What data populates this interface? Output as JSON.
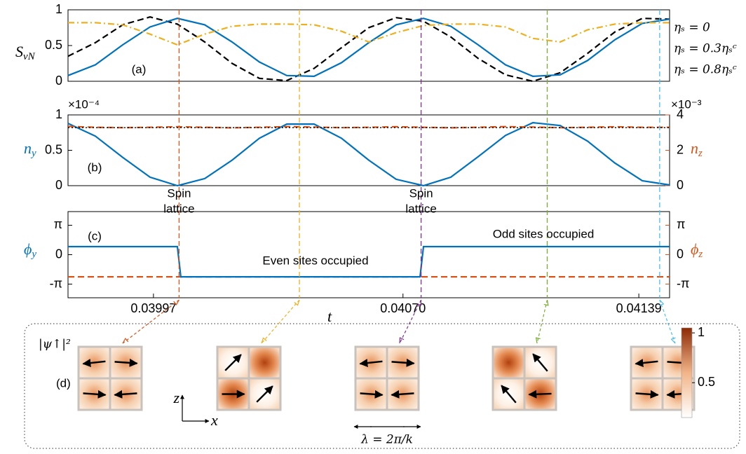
{
  "chart_data": [
    {
      "type": "line",
      "panel_label": "(a)",
      "ylabel": {
        "base": "S",
        "sub": "vN"
      },
      "x": [
        0.03972,
        0.0398,
        0.03988,
        0.03996,
        0.04004,
        0.04012,
        0.0402,
        0.04028,
        0.04036,
        0.04044,
        0.04052,
        0.0406,
        0.04068,
        0.04076,
        0.04084,
        0.04092,
        0.041,
        0.04108,
        0.04116,
        0.04124,
        0.04132,
        0.0414,
        0.04148
      ],
      "xlim": [
        0.03972,
        0.04148
      ],
      "ylim": [
        0,
        1
      ],
      "yticks": [
        0,
        0.5,
        1
      ],
      "legend": "right-outside",
      "series": [
        {
          "name": "ηₛ = 0",
          "color": "#000000",
          "style": "dashed",
          "values": [
            0.35,
            0.54,
            0.79,
            0.9,
            0.8,
            0.55,
            0.25,
            0.04,
            0.01,
            0.18,
            0.47,
            0.75,
            0.89,
            0.84,
            0.62,
            0.32,
            0.09,
            0.0,
            0.12,
            0.39,
            0.69,
            0.88,
            0.87
          ]
        },
        {
          "name": "ηₛ = 0.3ηₛᶜ",
          "color": "#0072BD",
          "style": "solid",
          "values": [
            0.08,
            0.23,
            0.51,
            0.76,
            0.88,
            0.79,
            0.55,
            0.27,
            0.08,
            0.07,
            0.26,
            0.54,
            0.79,
            0.88,
            0.77,
            0.51,
            0.23,
            0.07,
            0.09,
            0.29,
            0.58,
            0.81,
            0.87
          ]
        },
        {
          "name": "ηₛ = 0.8ηₛᶜ",
          "color": "#EDB120",
          "style": "dash-dot",
          "values": [
            0.82,
            0.82,
            0.79,
            0.66,
            0.51,
            0.66,
            0.77,
            0.8,
            0.8,
            0.79,
            0.7,
            0.55,
            0.68,
            0.78,
            0.8,
            0.8,
            0.76,
            0.6,
            0.55,
            0.72,
            0.8,
            0.82,
            0.82
          ]
        }
      ]
    },
    {
      "type": "line",
      "panel_label": "(b)",
      "ylabel": {
        "base": "n",
        "sub": "y"
      },
      "y2label": {
        "base": "n",
        "sub": "z"
      },
      "y_exponent": "×10⁻⁴",
      "y2_exponent": "×10⁻³",
      "y_color": "#0072BD",
      "y2_color": "#D95319",
      "x": [
        0.03972,
        0.0398,
        0.03988,
        0.03996,
        0.04004,
        0.04012,
        0.0402,
        0.04028,
        0.04036,
        0.04044,
        0.04052,
        0.0406,
        0.04068,
        0.04076,
        0.04084,
        0.04092,
        0.041,
        0.04108,
        0.04116,
        0.04124,
        0.04132,
        0.0414,
        0.04148
      ],
      "xlim": [
        0.03972,
        0.04148
      ],
      "ylim": [
        0,
        1
      ],
      "yticks": [
        0,
        0.5,
        1
      ],
      "y2lim": [
        0,
        4
      ],
      "y2ticks": [
        0,
        2,
        4
      ],
      "annotations": [
        [
          "Spin",
          "lattice"
        ],
        [
          "Spin",
          "lattice"
        ]
      ],
      "series": [
        {
          "color": "#0072BD",
          "style": "solid",
          "values": [
            0.88,
            0.7,
            0.4,
            0.12,
            0.0,
            0.1,
            0.36,
            0.67,
            0.87,
            0.87,
            0.67,
            0.36,
            0.09,
            0.0,
            0.12,
            0.41,
            0.71,
            0.89,
            0.85,
            0.63,
            0.32,
            0.07,
            0.01
          ]
        },
        {
          "color": "#D95319",
          "style": "dashed",
          "axis": "y2",
          "values": [
            3.35,
            3.3,
            3.28,
            3.3,
            3.33,
            3.3,
            3.27,
            3.3,
            3.34,
            3.31,
            3.28,
            3.3,
            3.33,
            3.3,
            3.27,
            3.3,
            3.34,
            3.31,
            3.28,
            3.3,
            3.33,
            3.3,
            3.3
          ]
        },
        {
          "color": "#000000",
          "style": "dotted",
          "values": [
            0.82,
            0.82,
            0.82,
            0.82,
            0.82,
            0.82,
            0.82,
            0.82,
            0.82,
            0.82,
            0.82,
            0.82,
            0.82,
            0.82,
            0.82,
            0.82,
            0.82,
            0.82,
            0.82,
            0.82,
            0.82,
            0.82,
            0.82
          ]
        }
      ]
    },
    {
      "type": "line",
      "panel_label": "(c)",
      "ylabel": {
        "base": "ϕ",
        "sub": "y"
      },
      "y2label": {
        "base": "ϕ",
        "sub": "z"
      },
      "y_color": "#0072BD",
      "y2_color": "#D95319",
      "xlabel": "t",
      "x": [
        0.03972,
        0.04004,
        0.04005,
        0.04075,
        0.04076,
        0.04148
      ],
      "xlim": [
        0.03972,
        0.04148
      ],
      "xticks": [
        0.03997,
        {
          "value": 0.0407,
          "label": "0.04070"
        },
        0.04139
      ],
      "ylim": [
        -4.6,
        4.6
      ],
      "yticks": [
        {
          "value": -3.1416,
          "label": "-π"
        },
        0,
        {
          "value": 3.1416,
          "label": "π"
        }
      ],
      "y2lim": [
        -4.6,
        4.6
      ],
      "y2ticks": [
        {
          "value": -3.1416,
          "label": "-π"
        },
        0,
        {
          "value": 3.1416,
          "label": "π"
        }
      ],
      "annotations": [
        "Even sites occupied",
        "Odd sites occupied"
      ],
      "series": [
        {
          "color": "#D95319",
          "style": "dashed",
          "axis": "y2",
          "values": [
            -2.36,
            -2.36,
            -2.36,
            -2.36,
            -2.36,
            -2.36
          ]
        },
        {
          "color": "#0072BD",
          "style": "solid",
          "values": [
            0.86,
            0.86,
            -2.36,
            -2.36,
            0.86,
            0.86
          ]
        }
      ]
    }
  ],
  "time_markers": [
    {
      "t": 0.040045,
      "color": "#D95319"
    },
    {
      "t": 0.040397,
      "color": "#EDB120"
    },
    {
      "t": 0.040753,
      "color": "#7E2F8E"
    },
    {
      "t": 0.041122,
      "color": "#77AC30"
    },
    {
      "t": 0.041451,
      "color": "#4DBEEE"
    }
  ],
  "panel_d": {
    "label": "(d)",
    "quantity": "|ψ↑|²",
    "z_axis": "z",
    "x_axis": "x",
    "wavelength": "λ = 2π/k",
    "colorbar": {
      "lim": [
        0.15,
        1.05
      ],
      "ticks": [
        0.5,
        1
      ]
    }
  }
}
